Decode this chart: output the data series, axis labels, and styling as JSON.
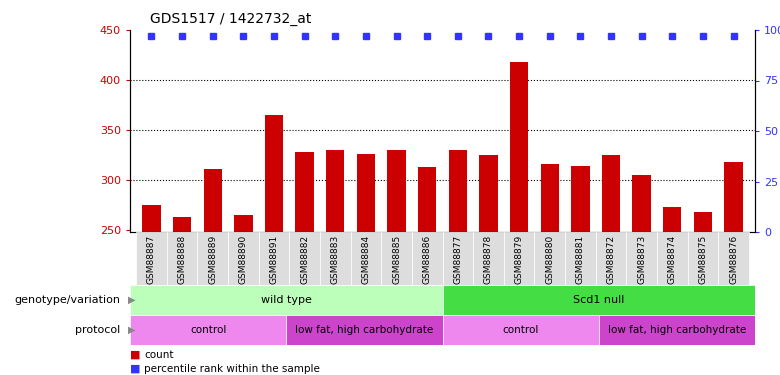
{
  "title": "GDS1517 / 1422732_at",
  "samples": [
    "GSM88887",
    "GSM88888",
    "GSM88889",
    "GSM88890",
    "GSM88891",
    "GSM88882",
    "GSM88883",
    "GSM88884",
    "GSM88885",
    "GSM88886",
    "GSM88877",
    "GSM88878",
    "GSM88879",
    "GSM88880",
    "GSM88881",
    "GSM88872",
    "GSM88873",
    "GSM88874",
    "GSM88875",
    "GSM88876"
  ],
  "counts": [
    275,
    263,
    311,
    265,
    365,
    328,
    330,
    326,
    330,
    313,
    330,
    325,
    418,
    316,
    314,
    325,
    305,
    273,
    268,
    318
  ],
  "percentile_values": [
    97,
    97,
    97,
    97,
    97,
    97,
    97,
    97,
    97,
    97,
    97,
    97,
    97,
    97,
    97,
    97,
    97,
    97,
    97,
    97
  ],
  "ylim_left": [
    248,
    450
  ],
  "ylim_right": [
    0,
    100
  ],
  "yticks_left": [
    250,
    300,
    350,
    400,
    450
  ],
  "yticks_right": [
    0,
    25,
    50,
    75,
    100
  ],
  "bar_color": "#cc0000",
  "dot_color": "#3333ff",
  "background_color": "#ffffff",
  "genotype_groups": [
    {
      "label": "wild type",
      "start": 0,
      "end": 10,
      "color": "#bbffbb"
    },
    {
      "label": "Scd1 null",
      "start": 10,
      "end": 20,
      "color": "#44dd44"
    }
  ],
  "protocol_groups": [
    {
      "label": "control",
      "start": 0,
      "end": 5,
      "color": "#ee88ee"
    },
    {
      "label": "low fat, high carbohydrate",
      "start": 5,
      "end": 10,
      "color": "#cc44cc"
    },
    {
      "label": "control",
      "start": 10,
      "end": 15,
      "color": "#ee88ee"
    },
    {
      "label": "low fat, high carbohydrate",
      "start": 15,
      "end": 20,
      "color": "#cc44cc"
    }
  ],
  "genotype_label": "genotype/variation",
  "protocol_label": "protocol",
  "legend_count_label": "count",
  "legend_pct_label": "percentile rank within the sample"
}
